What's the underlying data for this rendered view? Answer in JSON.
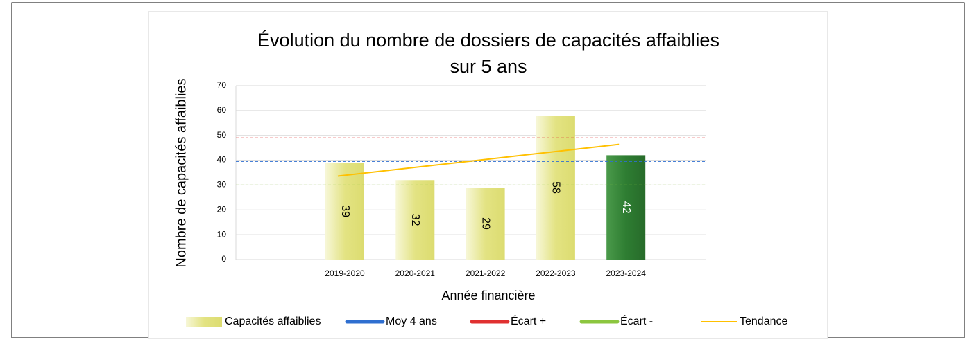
{
  "chart_data": {
    "type": "bar",
    "title": [
      "Évolution du nombre de dossiers de capacités affaiblies",
      "sur 5 ans"
    ],
    "x_label": "Année financière",
    "y_label": "Nombre de capacités  affaiblies",
    "categories": [
      "2019-2020",
      "2020-2021",
      "2021-2022",
      "2022-2023",
      "2023-2024"
    ],
    "ylim": [
      0,
      70
    ],
    "yticks": [
      0,
      10,
      20,
      30,
      40,
      50,
      60,
      70
    ],
    "grid": true,
    "legend": "bottom",
    "series": [
      {
        "name": "Capacités affaiblies",
        "type": "bar",
        "color": "#e3e383",
        "colors": [
          "#e3e383",
          "#e3e383",
          "#e3e383",
          "#e3e383",
          "#2e7d32"
        ],
        "values": [
          39,
          32,
          29,
          58,
          42
        ]
      },
      {
        "name": "Moy 4 ans",
        "type": "hline",
        "color": "#2f6fd0",
        "value": 39.5
      },
      {
        "name": "Écart +",
        "type": "hline",
        "color": "#e03030",
        "value": 49
      },
      {
        "name": "Écart -",
        "type": "hline",
        "color": "#8cc63f",
        "value": 30
      },
      {
        "name": "Tendance",
        "type": "line",
        "color": "#ffc000",
        "values": [
          33.6,
          36.8,
          40,
          43.2,
          46.4
        ]
      }
    ]
  }
}
